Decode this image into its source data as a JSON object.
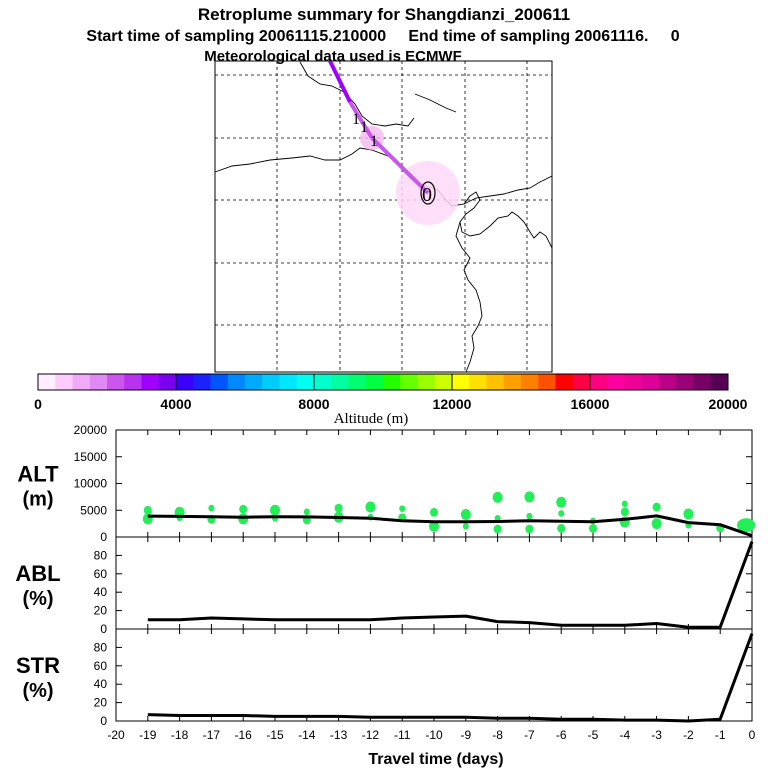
{
  "header": {
    "title": "Retroplume summary for Shangdianzi_200611",
    "subtitle": "Start time of sampling 20061115.210000     End time of sampling 20061116.     0",
    "met_line": "Meteorological data used is ECMWF"
  },
  "colorbar": {
    "label": "Altitude (m)",
    "ticks": [
      "0",
      "4000",
      "8000",
      "12000",
      "16000",
      "20000"
    ],
    "colors": [
      "#ffeeff",
      "#ffccff",
      "#f0aaf8",
      "#e088f4",
      "#cc55ee",
      "#b833f0",
      "#a000ff",
      "#7a00ee",
      "#3a00ff",
      "#1a22ff",
      "#0055ff",
      "#0088ff",
      "#00aaff",
      "#00ccff",
      "#00e8ff",
      "#00ffee",
      "#00ffcc",
      "#00ffa0",
      "#00ff70",
      "#00ff40",
      "#22ff00",
      "#66ff00",
      "#99ff00",
      "#ccff00",
      "#ffff00",
      "#ffe000",
      "#ffc000",
      "#ffa000",
      "#ff8000",
      "#ff5000",
      "#ff0000",
      "#ff0044",
      "#ff0080",
      "#ff00a0",
      "#ee0099",
      "#dd0099",
      "#bb0088",
      "#990077",
      "#770066",
      "#550055"
    ]
  },
  "map": {
    "labels": [
      {
        "text": "0",
        "kind": "release"
      },
      {
        "text": "1",
        "kind": "day"
      },
      {
        "text": "1",
        "kind": "day"
      },
      {
        "text": "1",
        "kind": "day"
      }
    ]
  },
  "panels": {
    "alt": {
      "label_line1": "ALT",
      "label_line2": "(m)"
    },
    "abl": {
      "label_line1": "ABL",
      "label_line2": "(%)"
    },
    "str": {
      "label_line1": "STR",
      "label_line2": "(%)"
    },
    "xlabel": "Travel time (days)",
    "colors": {
      "line": "#000000",
      "dots": "#22ee55"
    }
  },
  "chart_data": [
    {
      "type": "line",
      "title": "ALT (m)",
      "x": [
        -19,
        -18,
        -17,
        -16,
        -15,
        -14,
        -13,
        -12,
        -11,
        -10,
        -9,
        -8,
        -7,
        -6,
        -5,
        -4,
        -3,
        -2,
        -1,
        0
      ],
      "values": [
        3900,
        3850,
        3800,
        3700,
        3800,
        3750,
        3650,
        3500,
        3050,
        2850,
        2850,
        2900,
        3050,
        2950,
        2850,
        3300,
        3950,
        2700,
        2300,
        250
      ],
      "ylim": [
        0,
        20000
      ],
      "yticks": [
        "0",
        "5000",
        "10000",
        "15000",
        "20000"
      ],
      "spread_points": {
        "x": [
          -19,
          -19,
          -18,
          -18,
          -17,
          -17,
          -16,
          -16,
          -15,
          -15,
          -14,
          -14,
          -13,
          -13,
          -12,
          -12,
          -11,
          -11,
          -10,
          -10,
          -9,
          -9,
          -8,
          -8,
          -8,
          -7,
          -7,
          -7,
          -6,
          -6,
          -6,
          -5,
          -5,
          -4,
          -4,
          -4,
          -3,
          -3,
          -2,
          -2,
          -1,
          0
        ],
        "y": [
          3400,
          5000,
          3600,
          4600,
          3300,
          5400,
          3400,
          5200,
          3500,
          5000,
          3200,
          4700,
          3700,
          5400,
          3700,
          5600,
          3600,
          5300,
          2000,
          4600,
          2000,
          4200,
          1500,
          3500,
          7400,
          1500,
          3900,
          7500,
          1600,
          4400,
          6500,
          1600,
          3000,
          2800,
          4700,
          6200,
          2500,
          5600,
          2200,
          4300,
          1700,
          2300
        ]
      }
    },
    {
      "type": "line",
      "title": "ABL (%)",
      "x": [
        -19,
        -18,
        -17,
        -16,
        -15,
        -14,
        -13,
        -12,
        -11,
        -10,
        -9,
        -8,
        -7,
        -6,
        -5,
        -4,
        -3,
        -2,
        -1,
        0
      ],
      "values": [
        10,
        10,
        12,
        11,
        10,
        10,
        10,
        10,
        12,
        13,
        14,
        8,
        7,
        4,
        4,
        4,
        6,
        2,
        2,
        95
      ],
      "ylim": [
        0,
        100
      ],
      "yticks": [
        "0",
        "20",
        "40",
        "60",
        "80"
      ]
    },
    {
      "type": "line",
      "title": "STR (%)",
      "x": [
        -19,
        -18,
        -17,
        -16,
        -15,
        -14,
        -13,
        -12,
        -11,
        -10,
        -9,
        -8,
        -7,
        -6,
        -5,
        -4,
        -3,
        -2,
        -1,
        0
      ],
      "values": [
        7,
        6,
        6,
        6,
        5,
        5,
        5,
        4,
        4,
        4,
        4,
        3,
        3,
        2,
        2,
        1,
        1,
        0,
        2,
        95
      ],
      "ylim": [
        0,
        100
      ],
      "yticks": [
        "0",
        "20",
        "40",
        "60",
        "80"
      ],
      "xlabel": "Travel time (days)",
      "xticks": [
        "-20",
        "-19",
        "-18",
        "-17",
        "-16",
        "-15",
        "-14",
        "-13",
        "-12",
        "-11",
        "-10",
        "-9",
        "-8",
        "-7",
        "-6",
        "-5",
        "-4",
        "-3",
        "-2",
        "-1",
        "0"
      ]
    }
  ]
}
